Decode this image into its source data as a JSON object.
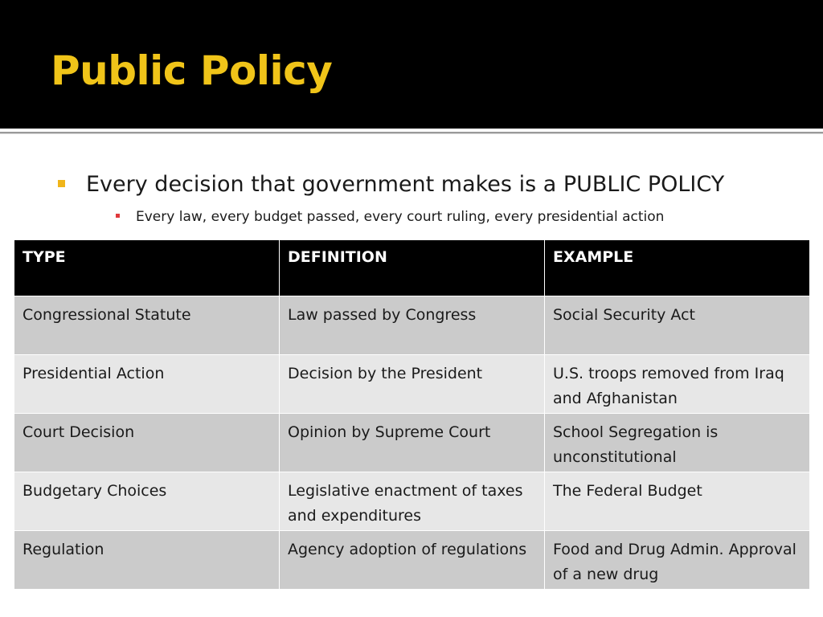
{
  "slide": {
    "title": "Public Policy",
    "bullets": [
      {
        "text": "Every decision that government makes is a PUBLIC POLICY",
        "sub": "Every law, every budget passed, every court ruling, every presidential action"
      }
    ]
  },
  "table": {
    "headers": [
      "TYPE",
      "DEFINITION",
      "EXAMPLE"
    ],
    "rows": [
      [
        "Congressional Statute",
        "Law passed by Congress",
        "Social Security Act"
      ],
      [
        "Presidential Action",
        "Decision by the President",
        "U.S. troops removed from Iraq and Afghanistan"
      ],
      [
        "Court Decision",
        "Opinion by Supreme Court",
        "School Segregation is unconstitutional"
      ],
      [
        "Budgetary Choices",
        "Legislative enactment of taxes and expenditures",
        "The Federal Budget"
      ],
      [
        "Regulation",
        "Agency adoption of regulations",
        "Food and Drug Admin. Approval of a new drug"
      ]
    ]
  },
  "colors": {
    "title": "#f0c419",
    "title_bar": "#000000",
    "bullet_main": "#f0b51a",
    "bullet_sub": "#e0383b",
    "row_dark": "#cbcbcb",
    "row_light": "#e7e7e7"
  }
}
